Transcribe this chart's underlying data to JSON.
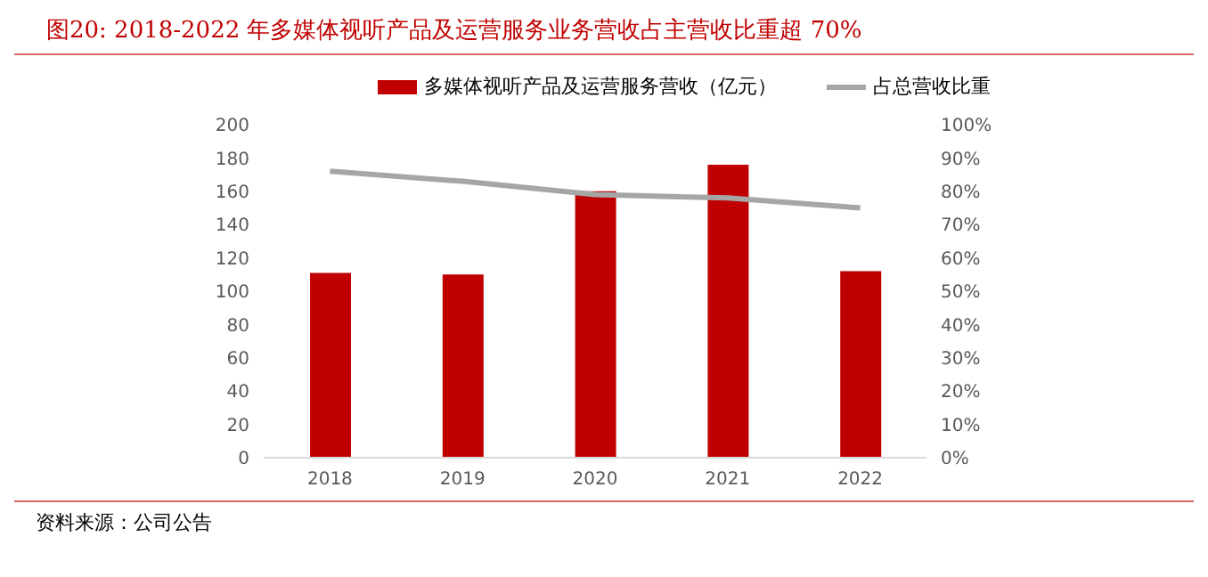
{
  "chart_data": {
    "type": "bar",
    "title": "图20:   2018-2022 年多媒体视听产品及运营服务业务营收占主营收比重超 70%",
    "categories": [
      "2018",
      "2019",
      "2020",
      "2021",
      "2022"
    ],
    "series": [
      {
        "name": "多媒体视听产品及运营服务营收（亿元）",
        "color": "#c00000",
        "values": [
          111,
          110,
          160,
          176,
          112
        ]
      },
      {
        "name": "占总营收比重",
        "type": "line",
        "axis": "y2",
        "color": "#a6a6a6",
        "marker": "none",
        "values": [
          86,
          83,
          79,
          78,
          75
        ]
      }
    ],
    "ylim": [
      0,
      200
    ],
    "yticks": [
      0,
      20,
      40,
      60,
      80,
      100,
      120,
      140,
      160,
      180,
      200
    ],
    "y2lim": [
      0,
      100
    ],
    "y2ticks": [
      {
        "value": 0,
        "label": "0%"
      },
      {
        "value": 10,
        "label": "10%"
      },
      {
        "value": 20,
        "label": "20%"
      },
      {
        "value": 30,
        "label": "30%"
      },
      {
        "value": 40,
        "label": "40%"
      },
      {
        "value": 50,
        "label": "50%"
      },
      {
        "value": 60,
        "label": "60%"
      },
      {
        "value": 70,
        "label": "70%"
      },
      {
        "value": 80,
        "label": "80%"
      },
      {
        "value": 90,
        "label": "90%"
      },
      {
        "value": 100,
        "label": "100%"
      }
    ],
    "grid": false,
    "legend": "top",
    "annotations": [
      "资料来源：公司公告"
    ]
  }
}
